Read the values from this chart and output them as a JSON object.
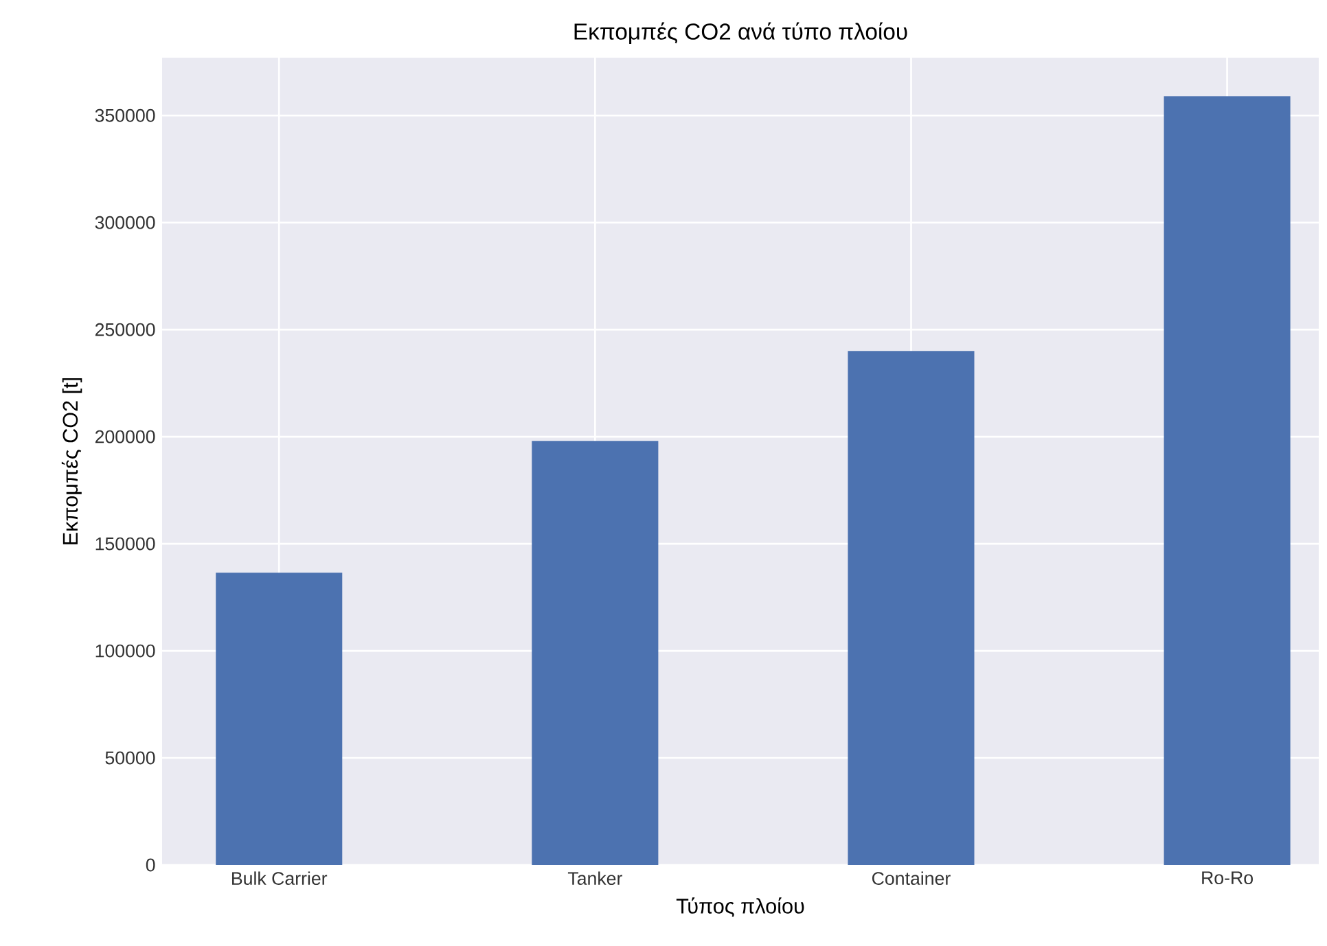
{
  "chart_data": {
    "type": "bar",
    "title": "Εκπομπές CO2 ανά τύπο πλοίου",
    "xlabel": "Τύπος πλοίου",
    "ylabel": "Εκπομπές CO2 [t]",
    "categories": [
      "Bulk Carrier",
      "Tanker",
      "Container",
      "Ro-Ro"
    ],
    "values": [
      136500,
      198000,
      240000,
      359000
    ],
    "color": "#4c72b0",
    "ylim": [
      0,
      377000
    ],
    "yticks": [
      0,
      50000,
      100000,
      150000,
      200000,
      250000,
      300000,
      350000
    ],
    "grid": true
  }
}
